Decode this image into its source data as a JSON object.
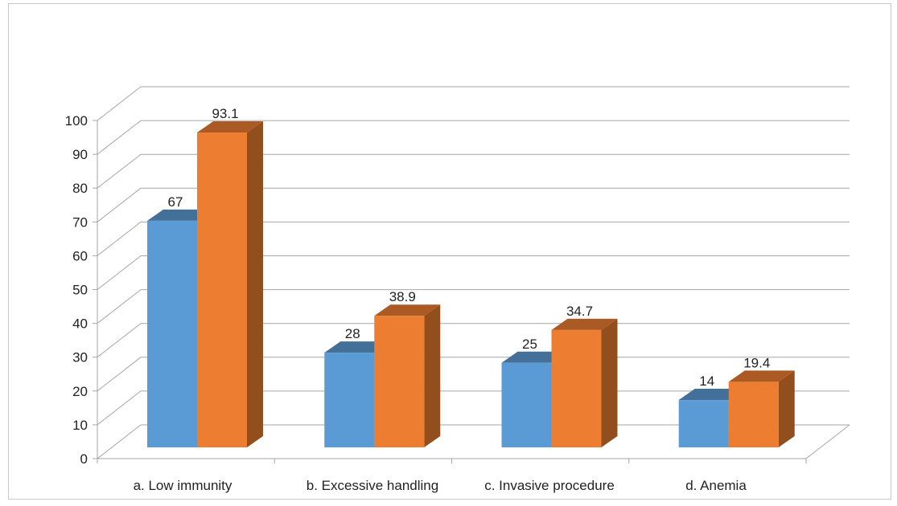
{
  "chart_data": {
    "type": "bar",
    "style": "3d-clustered-column",
    "categories": [
      "a. Low immunity",
      "b. Excessive handling",
      "c. Invasive procedure",
      "d. Anemia"
    ],
    "series": [
      {
        "color": "#5b9bd5",
        "values": [
          67,
          28,
          25,
          14
        ],
        "labels": [
          "67",
          "28",
          "25",
          "14"
        ]
      },
      {
        "color": "#ed7d31",
        "values": [
          93.1,
          38.9,
          34.7,
          19.4
        ],
        "labels": [
          "93.1",
          "38.9",
          "34.7",
          "19.4"
        ]
      }
    ],
    "title": "",
    "xlabel": "",
    "ylabel": "",
    "ylim": [
      0,
      100
    ],
    "y_ticks": [
      "0",
      "10",
      "20",
      "30",
      "40",
      "50",
      "60",
      "70",
      "80",
      "90",
      "100"
    ],
    "grid": true,
    "legend": "none"
  }
}
